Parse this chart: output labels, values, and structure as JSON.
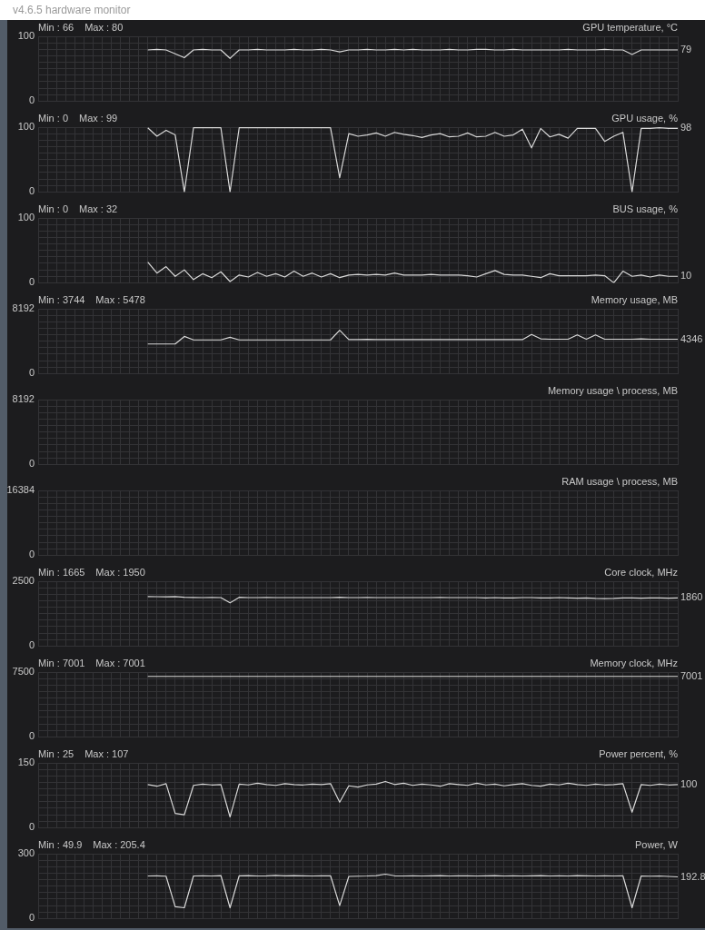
{
  "chart_data": [
    {
      "type": "line",
      "title": "GPU temperature, °C",
      "subtitle": "v4.6.5 hardware monitor",
      "annotations": [
        "Min : 66",
        "Max : 80"
      ],
      "value_labels": [
        null,
        null,
        null,
        null,
        null,
        null,
        null,
        null,
        null,
        null,
        null,
        null,
        null,
        null,
        null,
        null,
        null,
        null,
        null,
        null,
        null,
        null,
        null,
        null,
        null,
        null,
        null,
        null,
        null,
        null,
        null,
        null,
        null,
        null,
        null,
        null,
        null,
        null,
        null,
        null,
        null,
        null,
        null,
        null,
        null,
        null,
        null,
        null,
        null,
        null,
        null,
        null,
        null,
        null,
        null,
        null,
        null,
        null,
        null,
        null,
        null,
        null,
        null,
        null,
        null,
        null,
        null,
        null,
        null,
        null,
        "79"
      ],
      "color": "#d8d8d8",
      "grid": true,
      "tick_labels": "y",
      "ylim": [
        0,
        100
      ],
      "yticks": [
        0,
        {
          "value": 10,
          "label": null
        },
        {
          "value": 20,
          "label": null
        },
        {
          "value": 30,
          "label": null
        },
        {
          "value": 40,
          "label": null
        },
        {
          "value": 50,
          "label": null
        },
        {
          "value": 60,
          "label": null
        },
        {
          "value": 70,
          "label": null
        },
        {
          "value": 80,
          "label": null
        },
        {
          "value": 90,
          "label": null
        },
        100
      ],
      "categories": [
        null,
        null,
        null,
        null,
        null,
        null,
        null,
        null,
        null,
        null,
        null,
        null,
        null,
        null,
        null,
        null,
        null,
        null,
        null,
        null,
        null,
        null,
        null,
        null,
        null,
        null,
        null,
        null,
        null,
        null,
        null,
        null,
        null,
        null,
        null,
        null,
        null,
        null,
        null,
        null,
        null,
        null,
        null,
        null,
        null,
        null,
        null,
        null,
        null,
        null,
        null,
        null,
        null,
        null,
        null,
        null,
        null,
        null,
        null,
        null,
        null,
        null,
        null,
        null,
        null,
        null,
        null,
        null,
        null,
        null,
        null
      ],
      "values": [
        null,
        null,
        null,
        null,
        null,
        null,
        null,
        null,
        null,
        null,
        null,
        null,
        79,
        80,
        79,
        73,
        67,
        79,
        80,
        79,
        79,
        66,
        79,
        79,
        80,
        79,
        79,
        79,
        80,
        79,
        79,
        80,
        79,
        76,
        79,
        79,
        80,
        79,
        79,
        80,
        79,
        80,
        79,
        79,
        79,
        80,
        79,
        79,
        80,
        80,
        79,
        79,
        80,
        79,
        79,
        79,
        79,
        79,
        80,
        79,
        79,
        79,
        80,
        79,
        79,
        72,
        79,
        79,
        79,
        79,
        79
      ]
    },
    {
      "type": "line",
      "title": "GPU usage, %",
      "annotations": [
        "Min : 0",
        "Max : 99"
      ],
      "value_labels": [
        null,
        null,
        null,
        null,
        null,
        null,
        null,
        null,
        null,
        null,
        null,
        null,
        null,
        null,
        null,
        null,
        null,
        null,
        null,
        null,
        null,
        null,
        null,
        null,
        null,
        null,
        null,
        null,
        null,
        null,
        null,
        null,
        null,
        null,
        null,
        null,
        null,
        null,
        null,
        null,
        null,
        null,
        null,
        null,
        null,
        null,
        null,
        null,
        null,
        null,
        null,
        null,
        null,
        null,
        null,
        null,
        null,
        null,
        null,
        null,
        null,
        null,
        null,
        null,
        null,
        null,
        null,
        null,
        null,
        null,
        "98"
      ],
      "color": "#d8d8d8",
      "grid": true,
      "tick_labels": "y",
      "ylim": [
        0,
        100
      ],
      "yticks": [
        0,
        {
          "value": 10,
          "label": null
        },
        {
          "value": 20,
          "label": null
        },
        {
          "value": 30,
          "label": null
        },
        {
          "value": 40,
          "label": null
        },
        {
          "value": 50,
          "label": null
        },
        {
          "value": 60,
          "label": null
        },
        {
          "value": 70,
          "label": null
        },
        {
          "value": 80,
          "label": null
        },
        {
          "value": 90,
          "label": null
        },
        100
      ],
      "categories": [
        null,
        null,
        null,
        null,
        null,
        null,
        null,
        null,
        null,
        null,
        null,
        null,
        null,
        null,
        null,
        null,
        null,
        null,
        null,
        null,
        null,
        null,
        null,
        null,
        null,
        null,
        null,
        null,
        null,
        null,
        null,
        null,
        null,
        null,
        null,
        null,
        null,
        null,
        null,
        null,
        null,
        null,
        null,
        null,
        null,
        null,
        null,
        null,
        null,
        null,
        null,
        null,
        null,
        null,
        null,
        null,
        null,
        null,
        null,
        null,
        null,
        null,
        null,
        null,
        null,
        null,
        null,
        null,
        null,
        null,
        null
      ],
      "values": [
        null,
        null,
        null,
        null,
        null,
        null,
        null,
        null,
        null,
        null,
        null,
        null,
        99,
        86,
        95,
        88,
        0,
        99,
        99,
        99,
        99,
        0,
        99,
        99,
        99,
        99,
        99,
        99,
        99,
        99,
        99,
        99,
        99,
        22,
        90,
        86,
        88,
        91,
        86,
        92,
        89,
        87,
        84,
        88,
        90,
        85,
        86,
        91,
        85,
        86,
        92,
        86,
        88,
        97,
        68,
        98,
        85,
        89,
        83,
        98,
        98,
        98,
        78,
        86,
        92,
        0,
        98,
        98,
        99,
        98,
        98
      ]
    },
    {
      "type": "line",
      "title": "BUS usage, %",
      "annotations": [
        "Min : 0",
        "Max : 32"
      ],
      "value_labels": [
        null,
        null,
        null,
        null,
        null,
        null,
        null,
        null,
        null,
        null,
        null,
        null,
        null,
        null,
        null,
        null,
        null,
        null,
        null,
        null,
        null,
        null,
        null,
        null,
        null,
        null,
        null,
        null,
        null,
        null,
        null,
        null,
        null,
        null,
        null,
        null,
        null,
        null,
        null,
        null,
        null,
        null,
        null,
        null,
        null,
        null,
        null,
        null,
        null,
        null,
        null,
        null,
        null,
        null,
        null,
        null,
        null,
        null,
        null,
        null,
        null,
        null,
        null,
        null,
        null,
        null,
        null,
        null,
        null,
        null,
        "10"
      ],
      "color": "#d8d8d8",
      "grid": true,
      "tick_labels": "y",
      "ylim": [
        0,
        100
      ],
      "yticks": [
        0,
        {
          "value": 10,
          "label": null
        },
        {
          "value": 20,
          "label": null
        },
        {
          "value": 30,
          "label": null
        },
        {
          "value": 40,
          "label": null
        },
        {
          "value": 50,
          "label": null
        },
        {
          "value": 60,
          "label": null
        },
        {
          "value": 70,
          "label": null
        },
        {
          "value": 80,
          "label": null
        },
        {
          "value": 90,
          "label": null
        },
        100
      ],
      "categories": [
        null,
        null,
        null,
        null,
        null,
        null,
        null,
        null,
        null,
        null,
        null,
        null,
        null,
        null,
        null,
        null,
        null,
        null,
        null,
        null,
        null,
        null,
        null,
        null,
        null,
        null,
        null,
        null,
        null,
        null,
        null,
        null,
        null,
        null,
        null,
        null,
        null,
        null,
        null,
        null,
        null,
        null,
        null,
        null,
        null,
        null,
        null,
        null,
        null,
        null,
        null,
        null,
        null,
        null,
        null,
        null,
        null,
        null,
        null,
        null,
        null,
        null,
        null,
        null,
        null,
        null,
        null,
        null,
        null,
        null,
        null
      ],
      "values": [
        null,
        null,
        null,
        null,
        null,
        null,
        null,
        null,
        null,
        null,
        null,
        null,
        32,
        15,
        25,
        10,
        20,
        5,
        14,
        8,
        17,
        2,
        12,
        9,
        16,
        10,
        14,
        9,
        18,
        10,
        15,
        9,
        14,
        8,
        12,
        13,
        12,
        13,
        12,
        15,
        12,
        12,
        12,
        13,
        12,
        12,
        12,
        11,
        9,
        14,
        19,
        13,
        12,
        12,
        10,
        8,
        14,
        11,
        11,
        11,
        11,
        12,
        11,
        0,
        18,
        10,
        12,
        9,
        12,
        10,
        10
      ]
    },
    {
      "type": "line",
      "title": "Memory usage, MB",
      "annotations": [
        "Min : 3744",
        "Max : 5478"
      ],
      "value_labels": [
        null,
        null,
        null,
        null,
        null,
        null,
        null,
        null,
        null,
        null,
        null,
        null,
        null,
        null,
        null,
        null,
        null,
        null,
        null,
        null,
        null,
        null,
        null,
        null,
        null,
        null,
        null,
        null,
        null,
        null,
        null,
        null,
        null,
        null,
        null,
        null,
        null,
        null,
        null,
        null,
        null,
        null,
        null,
        null,
        null,
        null,
        null,
        null,
        null,
        null,
        null,
        null,
        null,
        null,
        null,
        null,
        null,
        null,
        null,
        null,
        null,
        null,
        null,
        null,
        null,
        null,
        null,
        null,
        null,
        null,
        "4346"
      ],
      "color": "#d8d8d8",
      "grid": true,
      "tick_labels": "y",
      "ylim": [
        0,
        8192
      ],
      "yticks": [
        0,
        {
          "value": 819.2,
          "label": null
        },
        {
          "value": 1638.4,
          "label": null
        },
        {
          "value": 2457.6,
          "label": null
        },
        {
          "value": 3276.8,
          "label": null
        },
        {
          "value": 4096,
          "label": null
        },
        {
          "value": 4915.2,
          "label": null
        },
        {
          "value": 5734.4,
          "label": null
        },
        {
          "value": 6553.6,
          "label": null
        },
        {
          "value": 7372.8,
          "label": null
        },
        8192
      ],
      "categories": [
        null,
        null,
        null,
        null,
        null,
        null,
        null,
        null,
        null,
        null,
        null,
        null,
        null,
        null,
        null,
        null,
        null,
        null,
        null,
        null,
        null,
        null,
        null,
        null,
        null,
        null,
        null,
        null,
        null,
        null,
        null,
        null,
        null,
        null,
        null,
        null,
        null,
        null,
        null,
        null,
        null,
        null,
        null,
        null,
        null,
        null,
        null,
        null,
        null,
        null,
        null,
        null,
        null,
        null,
        null,
        null,
        null,
        null,
        null,
        null,
        null,
        null,
        null,
        null,
        null,
        null,
        null,
        null,
        null,
        null,
        null
      ],
      "values": [
        null,
        null,
        null,
        null,
        null,
        null,
        null,
        null,
        null,
        null,
        null,
        null,
        3744,
        3744,
        3744,
        3744,
        4700,
        4265,
        4265,
        4265,
        4265,
        4600,
        4265,
        4265,
        4265,
        4265,
        4265,
        4265,
        4265,
        4265,
        4265,
        4265,
        4265,
        5478,
        4300,
        4300,
        4330,
        4300,
        4300,
        4310,
        4300,
        4300,
        4300,
        4300,
        4310,
        4300,
        4300,
        4300,
        4300,
        4300,
        4300,
        4300,
        4300,
        4300,
        4950,
        4400,
        4350,
        4350,
        4350,
        4900,
        4350,
        4900,
        4346,
        4346,
        4346,
        4346,
        4400,
        4346,
        4346,
        4346,
        4346
      ]
    },
    {
      "type": "line",
      "title": "Memory usage \\ process, MB",
      "color": "#d8d8d8",
      "grid": true,
      "tick_labels": "y",
      "ylim": [
        0,
        8192
      ],
      "yticks": [
        0,
        {
          "value": 819.2,
          "label": null
        },
        {
          "value": 1638.4,
          "label": null
        },
        {
          "value": 2457.6,
          "label": null
        },
        {
          "value": 3276.8,
          "label": null
        },
        {
          "value": 4096,
          "label": null
        },
        {
          "value": 4915.2,
          "label": null
        },
        {
          "value": 5734.4,
          "label": null
        },
        {
          "value": 6553.6,
          "label": null
        },
        {
          "value": 7372.8,
          "label": null
        },
        8192
      ],
      "categories": [
        null,
        null,
        null,
        null,
        null,
        null,
        null,
        null,
        null,
        null,
        null,
        null,
        null,
        null,
        null,
        null,
        null,
        null,
        null,
        null,
        null,
        null,
        null,
        null,
        null,
        null,
        null,
        null,
        null,
        null,
        null,
        null,
        null,
        null,
        null,
        null,
        null,
        null,
        null,
        null,
        null,
        null,
        null,
        null,
        null,
        null,
        null,
        null,
        null,
        null,
        null,
        null,
        null,
        null,
        null,
        null,
        null,
        null,
        null,
        null,
        null,
        null,
        null,
        null,
        null,
        null,
        null,
        null,
        null,
        null,
        null
      ],
      "values": [
        null,
        null,
        null,
        null,
        null,
        null,
        null,
        null,
        null,
        null,
        null,
        null,
        null,
        null,
        null,
        null,
        null,
        null,
        null,
        null,
        null,
        null,
        null,
        null,
        null,
        null,
        null,
        null,
        null,
        null,
        null,
        null,
        null,
        null,
        null,
        null,
        null,
        null,
        null,
        null,
        null,
        null,
        null,
        null,
        null,
        null,
        null,
        null,
        null,
        null,
        null,
        null,
        null,
        null,
        null,
        null,
        null,
        null,
        null,
        null,
        null,
        null,
        null,
        null,
        null,
        null,
        null,
        null,
        null,
        null,
        null
      ]
    },
    {
      "type": "line",
      "title": "RAM usage \\ process, MB",
      "color": "#d8d8d8",
      "grid": true,
      "tick_labels": "y",
      "ylim": [
        0,
        16384
      ],
      "yticks": [
        0,
        {
          "value": 1638.4,
          "label": null
        },
        {
          "value": 3276.8,
          "label": null
        },
        {
          "value": 4915.2,
          "label": null
        },
        {
          "value": 6553.6,
          "label": null
        },
        {
          "value": 8192,
          "label": null
        },
        {
          "value": 9830.4,
          "label": null
        },
        {
          "value": 11468.8,
          "label": null
        },
        {
          "value": 13107.2,
          "label": null
        },
        {
          "value": 14745.6,
          "label": null
        },
        16384
      ],
      "categories": [
        null,
        null,
        null,
        null,
        null,
        null,
        null,
        null,
        null,
        null,
        null,
        null,
        null,
        null,
        null,
        null,
        null,
        null,
        null,
        null,
        null,
        null,
        null,
        null,
        null,
        null,
        null,
        null,
        null,
        null,
        null,
        null,
        null,
        null,
        null,
        null,
        null,
        null,
        null,
        null,
        null,
        null,
        null,
        null,
        null,
        null,
        null,
        null,
        null,
        null,
        null,
        null,
        null,
        null,
        null,
        null,
        null,
        null,
        null,
        null,
        null,
        null,
        null,
        null,
        null,
        null,
        null,
        null,
        null,
        null,
        null
      ],
      "values": [
        null,
        null,
        null,
        null,
        null,
        null,
        null,
        null,
        null,
        null,
        null,
        null,
        null,
        null,
        null,
        null,
        null,
        null,
        null,
        null,
        null,
        null,
        null,
        null,
        null,
        null,
        null,
        null,
        null,
        null,
        null,
        null,
        null,
        null,
        null,
        null,
        null,
        null,
        null,
        null,
        null,
        null,
        null,
        null,
        null,
        null,
        null,
        null,
        null,
        null,
        null,
        null,
        null,
        null,
        null,
        null,
        null,
        null,
        null,
        null,
        null,
        null,
        null,
        null,
        null,
        null,
        null,
        null,
        null,
        null,
        null
      ]
    },
    {
      "type": "line",
      "title": "Core clock, MHz",
      "annotations": [
        "Min : 1665",
        "Max : 1950"
      ],
      "value_labels": [
        null,
        null,
        null,
        null,
        null,
        null,
        null,
        null,
        null,
        null,
        null,
        null,
        null,
        null,
        null,
        null,
        null,
        null,
        null,
        null,
        null,
        null,
        null,
        null,
        null,
        null,
        null,
        null,
        null,
        null,
        null,
        null,
        null,
        null,
        null,
        null,
        null,
        null,
        null,
        null,
        null,
        null,
        null,
        null,
        null,
        null,
        null,
        null,
        null,
        null,
        null,
        null,
        null,
        null,
        null,
        null,
        null,
        null,
        null,
        null,
        null,
        null,
        null,
        null,
        null,
        null,
        null,
        null,
        null,
        null,
        "1860"
      ],
      "color": "#d8d8d8",
      "grid": true,
      "tick_labels": "y",
      "ylim": [
        0,
        2500
      ],
      "yticks": [
        0,
        {
          "value": 250,
          "label": null
        },
        {
          "value": 500,
          "label": null
        },
        {
          "value": 750,
          "label": null
        },
        {
          "value": 1000,
          "label": null
        },
        {
          "value": 1250,
          "label": null
        },
        {
          "value": 1500,
          "label": null
        },
        {
          "value": 1750,
          "label": null
        },
        {
          "value": 2000,
          "label": null
        },
        {
          "value": 2250,
          "label": null
        },
        2500
      ],
      "categories": [
        null,
        null,
        null,
        null,
        null,
        null,
        null,
        null,
        null,
        null,
        null,
        null,
        null,
        null,
        null,
        null,
        null,
        null,
        null,
        null,
        null,
        null,
        null,
        null,
        null,
        null,
        null,
        null,
        null,
        null,
        null,
        null,
        null,
        null,
        null,
        null,
        null,
        null,
        null,
        null,
        null,
        null,
        null,
        null,
        null,
        null,
        null,
        null,
        null,
        null,
        null,
        null,
        null,
        null,
        null,
        null,
        null,
        null,
        null,
        null,
        null,
        null,
        null,
        null,
        null,
        null,
        null,
        null,
        null,
        null,
        null
      ],
      "values": [
        null,
        null,
        null,
        null,
        null,
        null,
        null,
        null,
        null,
        null,
        null,
        null,
        1910,
        1905,
        1900,
        1910,
        1880,
        1875,
        1870,
        1875,
        1870,
        1665,
        1880,
        1870,
        1870,
        1875,
        1870,
        1870,
        1870,
        1870,
        1870,
        1870,
        1870,
        1885,
        1870,
        1870,
        1875,
        1870,
        1870,
        1870,
        1870,
        1870,
        1870,
        1870,
        1875,
        1870,
        1870,
        1870,
        1870,
        1860,
        1870,
        1860,
        1860,
        1870,
        1870,
        1860,
        1860,
        1870,
        1860,
        1850,
        1860,
        1840,
        1830,
        1840,
        1860,
        1860,
        1850,
        1860,
        1860,
        1850,
        1860
      ]
    },
    {
      "type": "line",
      "title": "Memory clock, MHz",
      "annotations": [
        "Min : 7001",
        "Max : 7001"
      ],
      "value_labels": [
        null,
        null,
        null,
        null,
        null,
        null,
        null,
        null,
        null,
        null,
        null,
        null,
        null,
        null,
        null,
        null,
        null,
        null,
        null,
        null,
        null,
        null,
        null,
        null,
        null,
        null,
        null,
        null,
        null,
        null,
        null,
        null,
        null,
        null,
        null,
        null,
        null,
        null,
        null,
        null,
        null,
        null,
        null,
        null,
        null,
        null,
        null,
        null,
        null,
        null,
        null,
        null,
        null,
        null,
        null,
        null,
        null,
        null,
        null,
        null,
        null,
        null,
        null,
        null,
        null,
        null,
        null,
        null,
        null,
        null,
        "7001"
      ],
      "color": "#d8d8d8",
      "grid": true,
      "tick_labels": "y",
      "ylim": [
        0,
        7500
      ],
      "yticks": [
        0,
        {
          "value": 750,
          "label": null
        },
        {
          "value": 1500,
          "label": null
        },
        {
          "value": 2250,
          "label": null
        },
        {
          "value": 3000,
          "label": null
        },
        {
          "value": 3750,
          "label": null
        },
        {
          "value": 4500,
          "label": null
        },
        {
          "value": 5250,
          "label": null
        },
        {
          "value": 6000,
          "label": null
        },
        {
          "value": 6750,
          "label": null
        },
        7500
      ],
      "categories": [
        null,
        null,
        null,
        null,
        null,
        null,
        null,
        null,
        null,
        null,
        null,
        null,
        null,
        null,
        null,
        null,
        null,
        null,
        null,
        null,
        null,
        null,
        null,
        null,
        null,
        null,
        null,
        null,
        null,
        null,
        null,
        null,
        null,
        null,
        null,
        null,
        null,
        null,
        null,
        null,
        null,
        null,
        null,
        null,
        null,
        null,
        null,
        null,
        null,
        null,
        null,
        null,
        null,
        null,
        null,
        null,
        null,
        null,
        null,
        null,
        null,
        null,
        null,
        null,
        null,
        null,
        null,
        null,
        null,
        null,
        null
      ],
      "values": [
        null,
        null,
        null,
        null,
        null,
        null,
        null,
        null,
        null,
        null,
        null,
        null,
        7001,
        7001,
        7001,
        7001,
        7001,
        7001,
        7001,
        7001,
        7001,
        7001,
        7001,
        7001,
        7001,
        7001,
        7001,
        7001,
        7001,
        7001,
        7001,
        7001,
        7001,
        7001,
        7001,
        7001,
        7001,
        7001,
        7001,
        7001,
        7001,
        7001,
        7001,
        7001,
        7001,
        7001,
        7001,
        7001,
        7001,
        7001,
        7001,
        7001,
        7001,
        7001,
        7001,
        7001,
        7001,
        7001,
        7001,
        7001,
        7001,
        7001,
        7001,
        7001,
        7001,
        7001,
        7001,
        7001,
        7001,
        7001,
        7001
      ]
    },
    {
      "type": "line",
      "title": "Power percent, %",
      "annotations": [
        "Min : 25",
        "Max : 107"
      ],
      "value_labels": [
        null,
        null,
        null,
        null,
        null,
        null,
        null,
        null,
        null,
        null,
        null,
        null,
        null,
        null,
        null,
        null,
        null,
        null,
        null,
        null,
        null,
        null,
        null,
        null,
        null,
        null,
        null,
        null,
        null,
        null,
        null,
        null,
        null,
        null,
        null,
        null,
        null,
        null,
        null,
        null,
        null,
        null,
        null,
        null,
        null,
        null,
        null,
        null,
        null,
        null,
        null,
        null,
        null,
        null,
        null,
        null,
        null,
        null,
        null,
        null,
        null,
        null,
        null,
        null,
        null,
        null,
        null,
        null,
        null,
        null,
        "100"
      ],
      "color": "#d8d8d8",
      "grid": true,
      "tick_labels": "y",
      "ylim": [
        0,
        150
      ],
      "yticks": [
        0,
        {
          "value": 15,
          "label": null
        },
        {
          "value": 30,
          "label": null
        },
        {
          "value": 45,
          "label": null
        },
        {
          "value": 60,
          "label": null
        },
        {
          "value": 75,
          "label": null
        },
        {
          "value": 90,
          "label": null
        },
        {
          "value": 105,
          "label": null
        },
        {
          "value": 120,
          "label": null
        },
        {
          "value": 135,
          "label": null
        },
        150
      ],
      "categories": [
        null,
        null,
        null,
        null,
        null,
        null,
        null,
        null,
        null,
        null,
        null,
        null,
        null,
        null,
        null,
        null,
        null,
        null,
        null,
        null,
        null,
        null,
        null,
        null,
        null,
        null,
        null,
        null,
        null,
        null,
        null,
        null,
        null,
        null,
        null,
        null,
        null,
        null,
        null,
        null,
        null,
        null,
        null,
        null,
        null,
        null,
        null,
        null,
        null,
        null,
        null,
        null,
        null,
        null,
        null,
        null,
        null,
        null,
        null,
        null,
        null,
        null,
        null,
        null,
        null,
        null,
        null,
        null,
        null,
        null,
        null
      ],
      "values": [
        null,
        null,
        null,
        null,
        null,
        null,
        null,
        null,
        null,
        null,
        null,
        null,
        100,
        96,
        102,
        33,
        30,
        98,
        101,
        99,
        100,
        25,
        101,
        99,
        103,
        100,
        98,
        102,
        100,
        99,
        101,
        100,
        102,
        59,
        97,
        94,
        99,
        101,
        107,
        100,
        103,
        98,
        101,
        99,
        96,
        102,
        100,
        98,
        103,
        99,
        101,
        97,
        100,
        102,
        98,
        96,
        101,
        99,
        103,
        100,
        98,
        101,
        99,
        100,
        102,
        36,
        100,
        98,
        101,
        99,
        100
      ]
    },
    {
      "type": "line",
      "title": "Power, W",
      "annotations": [
        "Min : 49.9",
        "Max : 205.4"
      ],
      "value_labels": [
        null,
        null,
        null,
        null,
        null,
        null,
        null,
        null,
        null,
        null,
        null,
        null,
        null,
        null,
        null,
        null,
        null,
        null,
        null,
        null,
        null,
        null,
        null,
        null,
        null,
        null,
        null,
        null,
        null,
        null,
        null,
        null,
        null,
        null,
        null,
        null,
        null,
        null,
        null,
        null,
        null,
        null,
        null,
        null,
        null,
        null,
        null,
        null,
        null,
        null,
        null,
        null,
        null,
        null,
        null,
        null,
        null,
        null,
        null,
        null,
        null,
        null,
        null,
        null,
        null,
        null,
        null,
        null,
        null,
        null,
        "192.8"
      ],
      "color": "#d8d8d8",
      "grid": true,
      "tick_labels": "y",
      "ylim": [
        0,
        300
      ],
      "yticks": [
        0,
        {
          "value": 30,
          "label": null
        },
        {
          "value": 60,
          "label": null
        },
        {
          "value": 90,
          "label": null
        },
        {
          "value": 120,
          "label": null
        },
        {
          "value": 150,
          "label": null
        },
        {
          "value": 180,
          "label": null
        },
        {
          "value": 210,
          "label": null
        },
        {
          "value": 240,
          "label": null
        },
        {
          "value": 270,
          "label": null
        },
        300
      ],
      "categories": [
        null,
        null,
        null,
        null,
        null,
        null,
        null,
        null,
        null,
        null,
        null,
        null,
        null,
        null,
        null,
        null,
        null,
        null,
        null,
        null,
        null,
        null,
        null,
        null,
        null,
        null,
        null,
        null,
        null,
        null,
        null,
        null,
        null,
        null,
        null,
        null,
        null,
        null,
        null,
        null,
        null,
        null,
        null,
        null,
        null,
        null,
        null,
        null,
        null,
        null,
        null,
        null,
        null,
        null,
        null,
        null,
        null,
        null,
        null,
        null,
        null,
        null,
        null,
        null,
        null,
        null,
        null,
        null,
        null,
        null,
        null
      ],
      "values": [
        null,
        null,
        null,
        null,
        null,
        null,
        null,
        null,
        null,
        null,
        null,
        null,
        197,
        198,
        196,
        55,
        50,
        197,
        198,
        197,
        199,
        49.9,
        198,
        199,
        197,
        198,
        200,
        198,
        199,
        198,
        197,
        198,
        198,
        60,
        195,
        196,
        197,
        199,
        205.4,
        198,
        197,
        198,
        197,
        198,
        199,
        197,
        198,
        198,
        197,
        198,
        199,
        197,
        198,
        197,
        198,
        199,
        197,
        198,
        197,
        199,
        198,
        197,
        198,
        197,
        198,
        50,
        197,
        196,
        197,
        195,
        192.8
      ]
    }
  ]
}
